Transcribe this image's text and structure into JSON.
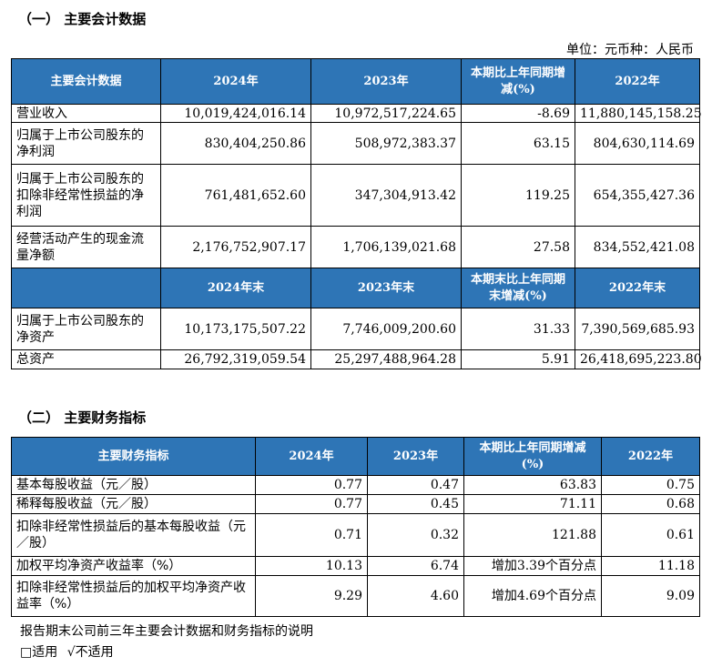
{
  "section1": {
    "title": "（一） 主要会计数据",
    "unit": "单位：元币种：人民币",
    "header1": [
      "主要会计数据",
      "2024年",
      "2023年",
      "本期比上年同期增减(%)",
      "2022年"
    ],
    "rows1": [
      {
        "label": "营业收入",
        "v2024": "10,019,424,016.14",
        "v2023": "10,972,517,224.65",
        "chg": "-8.69",
        "v2022": "11,880,145,158.25"
      },
      {
        "label": "归属于上市公司股东的净利润",
        "v2024": "830,404,250.86",
        "v2023": "508,972,383.37",
        "chg": "63.15",
        "v2022": "804,630,114.69"
      },
      {
        "label": "归属于上市公司股东的扣除非经常性损益的净利润",
        "v2024": "761,481,652.60",
        "v2023": "347,304,913.42",
        "chg": "119.25",
        "v2022": "654,355,427.36"
      },
      {
        "label": "经营活动产生的现金流量净额",
        "v2024": "2,176,752,907.17",
        "v2023": "1,706,139,021.68",
        "chg": "27.58",
        "v2022": "834,552,421.08"
      }
    ],
    "header2": [
      "",
      "2024年末",
      "2023年末",
      "本期末比上年同期末增减(%)",
      "2022年末"
    ],
    "rows2": [
      {
        "label": "归属于上市公司股东的净资产",
        "v2024": "10,173,175,507.22",
        "v2023": "7,746,009,200.60",
        "chg": "31.33",
        "v2022": "7,390,569,685.93"
      },
      {
        "label": "总资产",
        "v2024": "26,792,319,059.54",
        "v2023": "25,297,488,964.28",
        "chg": "5.91",
        "v2022": "26,418,695,223.80"
      }
    ]
  },
  "section2": {
    "title": "（二） 主要财务指标",
    "header": [
      "主要财务指标",
      "2024年",
      "2023年",
      "本期比上年同期增减(%)",
      "2022年"
    ],
    "rows": [
      {
        "label": "基本每股收益（元／股）",
        "v2024": "0.77",
        "v2023": "0.47",
        "chg": "63.83",
        "v2022": "0.75"
      },
      {
        "label": "稀释每股收益（元／股）",
        "v2024": "0.77",
        "v2023": "0.45",
        "chg": "71.11",
        "v2022": "0.68"
      },
      {
        "label": "扣除非经常性损益后的基本每股收益（元／股）",
        "v2024": "0.71",
        "v2023": "0.32",
        "chg": "121.88",
        "v2022": "0.61"
      },
      {
        "label": "加权平均净资产收益率（%）",
        "v2024": "10.13",
        "v2023": "6.74",
        "chg": "增加3.39个百分点",
        "v2022": "11.18"
      },
      {
        "label": "扣除非经常性损益后的加权平均净资产收益率（%）",
        "v2024": "9.29",
        "v2023": "4.60",
        "chg": "增加4.69个百分点",
        "v2022": "9.09"
      }
    ]
  },
  "note": {
    "line1": "报告期末公司前三年主要会计数据和财务指标的说明",
    "option_applicable": "□适用",
    "option_not_applicable": "√不适用"
  }
}
